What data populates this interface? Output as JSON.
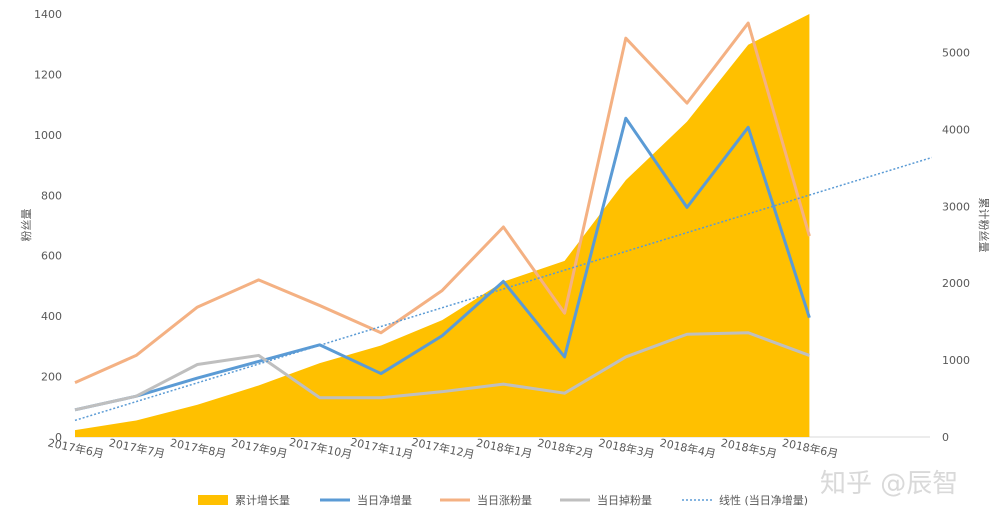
{
  "chart_data": {
    "type": "line",
    "categories": [
      "2017年6月",
      "2017年7月",
      "2017年8月",
      "2017年9月",
      "2017年10月",
      "2017年11月",
      "2017年12月",
      "2018年1月",
      "2018年2月",
      "2018年3月",
      "2018年4月",
      "2018年5月",
      "2018年6月"
    ],
    "left_axis": {
      "label": "粉丝量",
      "ticks": [
        0,
        200,
        400,
        600,
        800,
        1000,
        1200,
        1400
      ],
      "ylim": [
        0,
        1400
      ]
    },
    "right_axis": {
      "label": "累计粉丝量",
      "ticks": [
        0,
        1000,
        2000,
        3000,
        4000,
        5000
      ],
      "ylim": [
        0,
        5500
      ]
    },
    "series": [
      {
        "name": "累计增长量",
        "kind": "area",
        "axis": "right",
        "color": "#ffc000",
        "values": [
          90,
          215,
          420,
          670,
          960,
          1190,
          1520,
          2020,
          2290,
          3340,
          4100,
          5100,
          5500
        ]
      },
      {
        "name": "当日净增量",
        "kind": "line",
        "axis": "left",
        "color": "#5b9bd5",
        "values": [
          90,
          135,
          195,
          250,
          305,
          210,
          335,
          515,
          265,
          1055,
          760,
          1025,
          395
        ]
      },
      {
        "name": "当日涨粉量",
        "kind": "line",
        "axis": "left",
        "color": "#f4b183",
        "values": [
          180,
          270,
          430,
          520,
          435,
          345,
          485,
          695,
          410,
          1320,
          1105,
          1370,
          665
        ]
      },
      {
        "name": "当日掉粉量",
        "kind": "line",
        "axis": "left",
        "color": "#bfbfbf",
        "values": [
          90,
          135,
          240,
          270,
          130,
          130,
          150,
          175,
          145,
          265,
          340,
          345,
          270
        ]
      },
      {
        "name": "线性 (当日净增量)",
        "kind": "trend",
        "axis": "left",
        "color": "#5b9bd5",
        "from": {
          "x": 0,
          "y": 55
        },
        "to": {
          "x": 14.0,
          "y": 925
        }
      }
    ]
  },
  "watermark": {
    "text": "知乎 @辰智"
  }
}
